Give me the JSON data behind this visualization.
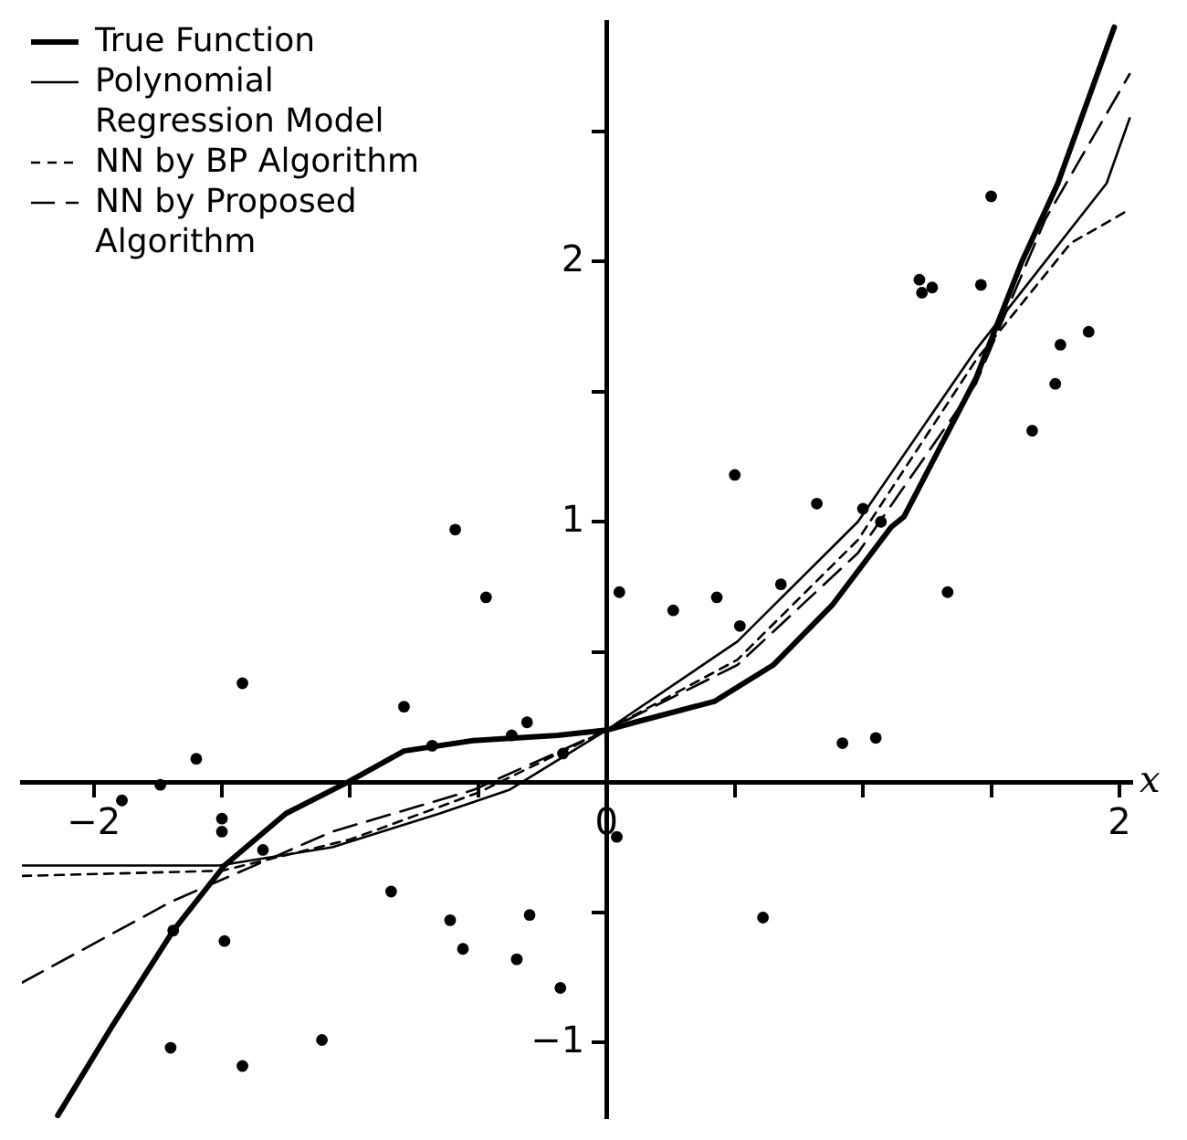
{
  "chart_data": {
    "type": "line",
    "xlabel": "x",
    "xlim": [
      -2.28,
      2.05
    ],
    "ylim": [
      -1.29,
      2.92
    ],
    "xticks": [
      {
        "value": -2,
        "label": "−2"
      },
      {
        "value": -1.5,
        "label": null
      },
      {
        "value": -1,
        "label": null
      },
      {
        "value": -0.5,
        "label": null
      },
      {
        "value": 0,
        "label": "0"
      },
      {
        "value": 0.5,
        "label": null
      },
      {
        "value": 1,
        "label": null
      },
      {
        "value": 1.5,
        "label": null
      },
      {
        "value": 2,
        "label": "2"
      }
    ],
    "yticks": [
      {
        "value": -1,
        "label": "−1"
      },
      {
        "value": -0.5,
        "label": null
      },
      {
        "value": 0.5,
        "label": null
      },
      {
        "value": 1,
        "label": "1"
      },
      {
        "value": 1.5,
        "label": null
      },
      {
        "value": 2,
        "label": "2"
      },
      {
        "value": 2.5,
        "label": null
      }
    ],
    "grid": false,
    "legend": "top left",
    "series": [
      {
        "name": "True Function",
        "type": "line",
        "color": "#000000",
        "line_style": "solid",
        "marker": "none",
        "x": [
          -2.14,
          -1.93,
          -1.69,
          -1.49,
          -1.25,
          -1.01,
          -0.79,
          -0.52,
          -0.19,
          0,
          0.11,
          0.42,
          0.65,
          0.88,
          1.11,
          1.16,
          1.44,
          1.62,
          1.76,
          1.98
        ],
        "values": [
          -1.28,
          -0.94,
          -0.57,
          -0.32,
          -0.12,
          0,
          0.12,
          0.16,
          0.18,
          0.2,
          0.23,
          0.31,
          0.45,
          0.68,
          0.98,
          1.02,
          1.55,
          2,
          2.3,
          2.9
        ]
      },
      {
        "name": "Polynomial Regression Model",
        "type": "line",
        "color": "#000000",
        "line_style": "solid",
        "marker": "none",
        "x": [
          -2.28,
          -1.51,
          -1.07,
          -0.65,
          -0.38,
          0,
          0.51,
          0.98,
          1.44,
          1.95,
          2.04
        ],
        "values": [
          -0.32,
          -0.32,
          -0.25,
          -0.12,
          -0.03,
          0.2,
          0.54,
          1,
          1.66,
          2.3,
          2.55
        ]
      },
      {
        "name": "NN by BP Algorithm",
        "type": "line",
        "color": "#000000",
        "line_style": "dashed",
        "marker": "none",
        "x": [
          -2.28,
          -1.5,
          -1,
          -0.5,
          0,
          0.51,
          0.98,
          1.44,
          1.81,
          2.04
        ],
        "values": [
          -0.36,
          -0.34,
          -0.22,
          -0.04,
          0.2,
          0.47,
          0.93,
          1.62,
          2.07,
          2.2
        ]
      },
      {
        "name": "NN by Proposed Algorithm",
        "type": "line",
        "color": "#000000",
        "line_style": "dashed",
        "marker": "none",
        "x": [
          -2.28,
          -1.7,
          -1.07,
          -0.52,
          0,
          0.51,
          0.98,
          1.44,
          1.71,
          2.04
        ],
        "values": [
          -0.77,
          -0.46,
          -0.19,
          -0.03,
          0.2,
          0.45,
          0.88,
          1.53,
          2.16,
          2.72
        ]
      },
      {
        "type": "scatter",
        "color": "#000000",
        "marker": "circle",
        "x": [
          -0.59,
          -0.47,
          -1.42,
          -0.79,
          -0.68,
          -0.37,
          -0.31,
          -0.17,
          -1.6,
          -1.74,
          -1.89,
          -1.5,
          -1.5,
          -1.34,
          -1.69,
          -1.49,
          -0.84,
          -0.61,
          -0.3,
          -0.56,
          -0.35,
          -0.18,
          -1.7,
          -1.42,
          -1.11,
          0.04,
          0.05,
          0.26,
          0.43,
          0.52,
          0.68,
          1.33,
          0.92,
          1.05,
          0.82,
          1,
          1.07,
          0.5,
          1.5,
          1.22,
          1.23,
          1.27,
          1.46,
          1.88,
          1.77,
          1.75,
          1.66,
          0.61
        ],
        "values": [
          0.97,
          0.71,
          0.38,
          0.29,
          0.14,
          0.18,
          0.23,
          0.11,
          0.09,
          -0.01,
          -0.07,
          -0.14,
          -0.19,
          -0.26,
          -0.57,
          -0.61,
          -0.42,
          -0.53,
          -0.51,
          -0.64,
          -0.68,
          -0.79,
          -1.02,
          -1.09,
          -0.99,
          -0.21,
          0.73,
          0.66,
          0.71,
          0.6,
          0.76,
          0.73,
          0.15,
          0.17,
          1.07,
          1.05,
          1,
          1.18,
          2.25,
          1.93,
          1.88,
          1.9,
          1.91,
          1.73,
          1.68,
          1.53,
          1.35,
          -0.52
        ]
      }
    ]
  }
}
